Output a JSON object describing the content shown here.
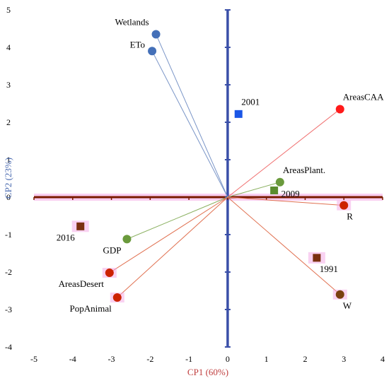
{
  "chart_data": {
    "type": "scatter",
    "title": "",
    "xlabel": "CP1 (60%)",
    "ylabel": "CP2 (23%)",
    "xlim": [
      -5,
      4
    ],
    "ylim": [
      -4,
      5
    ],
    "xticks": [
      -5,
      -4,
      -3,
      -2,
      -1,
      0,
      1,
      2,
      3,
      4
    ],
    "yticks": [
      -4,
      -3,
      -2,
      -1,
      0,
      1,
      2,
      3,
      4,
      5
    ],
    "grid": false,
    "legend": "none",
    "variables": [
      {
        "label": "Wetlands",
        "x": -1.85,
        "y": 4.35,
        "color": "#4470b8",
        "line": "#7a95c7",
        "label_pos": "left-above"
      },
      {
        "label": "ETo",
        "x": -1.95,
        "y": 3.9,
        "color": "#4470b8",
        "line": "#7a95c7",
        "label_pos": "left"
      },
      {
        "label": "AreasCAA",
        "x": 2.9,
        "y": 2.35,
        "color": "#ff1a1a",
        "line": "#f07070",
        "label_pos": "above-right"
      },
      {
        "label": "AreasPlant.",
        "x": 1.35,
        "y": 0.4,
        "color": "#6a9a3c",
        "line": "#8ab060",
        "label_pos": "above-right"
      },
      {
        "label": "R",
        "x": 3.0,
        "y": -0.22,
        "color": "#cc2200",
        "line": "#e07050",
        "label_pos": "below-right",
        "highlight": true
      },
      {
        "label": "GDP",
        "x": -2.6,
        "y": -1.12,
        "color": "#6a9a3c",
        "line": "#8ab060",
        "label_pos": "below-left"
      },
      {
        "label": "AreasDesert",
        "x": -3.05,
        "y": -2.02,
        "color": "#cc2200",
        "line": "#e07050",
        "label_pos": "below-left",
        "highlight": true
      },
      {
        "label": "PopAnimal",
        "x": -2.85,
        "y": -2.68,
        "color": "#cc2200",
        "line": "#e07050",
        "label_pos": "below-left",
        "highlight": true
      },
      {
        "label": "W",
        "x": 2.9,
        "y": -2.6,
        "color": "#7a4010",
        "line": "#e07050",
        "label_pos": "below-right",
        "highlight": true
      }
    ],
    "years": [
      {
        "label": "2001",
        "x": 0.28,
        "y": 2.22,
        "color": "#1a56e6",
        "label_pos": "above-right"
      },
      {
        "label": "2009",
        "x": 1.2,
        "y": 0.18,
        "color": "#5a8c2e",
        "label_pos": "right"
      },
      {
        "label": "2016",
        "x": -3.8,
        "y": -0.78,
        "color": "#7a3010",
        "label_pos": "below-left",
        "highlight": true
      },
      {
        "label": "1991",
        "x": 2.3,
        "y": -1.62,
        "color": "#7a3010",
        "label_pos": "below-right",
        "highlight": true
      }
    ],
    "axis_colors": {
      "vertical": "#3a4fa8",
      "horizontal": "#7a1a00",
      "horizontal_glow": "#f4a6e6",
      "xlabel": "#c04040",
      "ylabel": "#4a6ab0"
    }
  }
}
